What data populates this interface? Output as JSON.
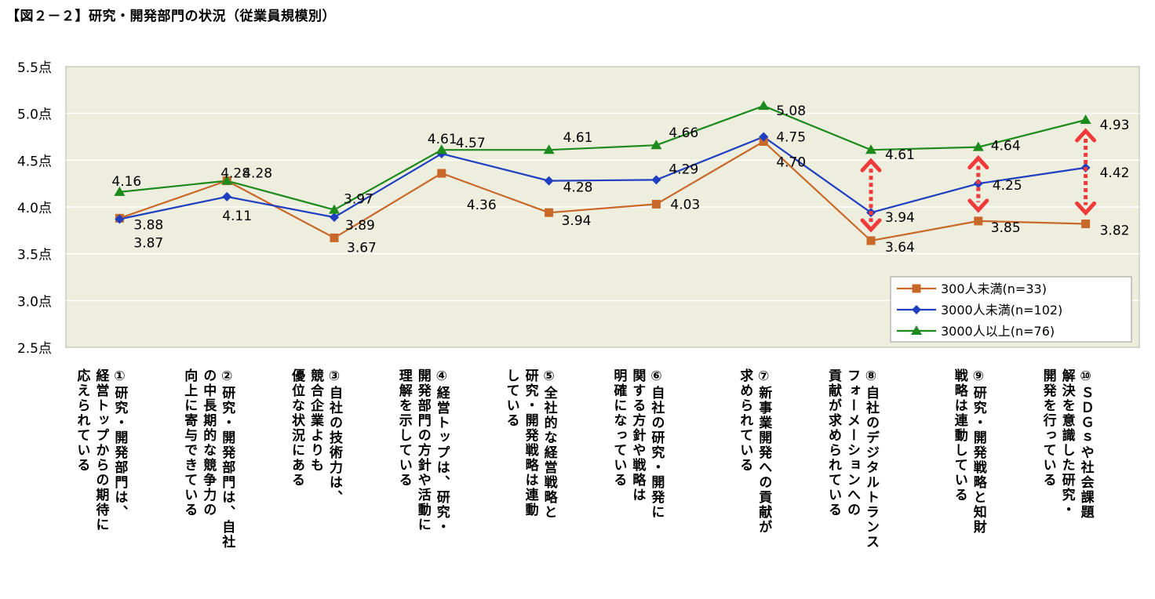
{
  "title": "【図２－２】研究・開発部門の状況（従業員規模別）",
  "chart_data": {
    "type": "line",
    "ylim": [
      2.5,
      5.5
    ],
    "yticks": [
      2.5,
      3.0,
      3.5,
      4.0,
      4.5,
      5.0,
      5.5
    ],
    "ytick_labels": [
      "2.5点",
      "3.0点",
      "3.5点",
      "4.0点",
      "4.5点",
      "5.0点",
      "5.5点"
    ],
    "categories": [
      [
        "①研究・開発部門は、",
        "経営トップからの期待に",
        "応えられている"
      ],
      [
        "②研究・開発部門は、自社",
        "の中長期的な競争力の",
        "向上に寄与できている"
      ],
      [
        "③自社の技術力は、",
        "競合企業よりも",
        "優位な状況にある"
      ],
      [
        "④経営トップは、研究・",
        "開発部門の方針や活動に",
        "理解を示している"
      ],
      [
        "⑤全社的な経営戦略と",
        "研究・開発戦略は連動",
        "している"
      ],
      [
        "⑥自社の研究・開発に",
        "関する方針や戦略は",
        "明確になっている"
      ],
      [
        "⑦新事業開発への貢献が",
        "求められている"
      ],
      [
        "⑧自社のデジタルトランス",
        "フォーメーションへの",
        "貢献が求められている"
      ],
      [
        "⑨研究・開発戦略と知財",
        "戦略は連動している"
      ],
      [
        "⑩ＳＤＧｓや社会課題",
        "解決を意識した研究・",
        "開発を行っている"
      ]
    ],
    "series": [
      {
        "name": "300人未満(n=33)",
        "color": "#c8692a",
        "marker": "square",
        "values": [
          3.88,
          4.28,
          3.67,
          4.36,
          3.94,
          4.03,
          4.7,
          3.64,
          3.85,
          3.82
        ],
        "labels": [
          "3.88",
          "4.28",
          "3.67",
          "4.36",
          "3.94",
          "4.03",
          "4.70",
          "3.64",
          "3.85",
          "3.82"
        ]
      },
      {
        "name": "3000人未満(n=102)",
        "color": "#1f3fc0",
        "marker": "diamond",
        "values": [
          3.87,
          4.11,
          3.89,
          4.57,
          4.28,
          4.29,
          4.75,
          3.94,
          4.25,
          4.42
        ],
        "labels": [
          "3.87",
          "4.11",
          "3.89",
          "4.57",
          "4.28",
          "4.29",
          "4.75",
          "3.94",
          "4.25",
          "4.42"
        ]
      },
      {
        "name": "3000人以上(n=76)",
        "color": "#1c8a1c",
        "marker": "triangle",
        "values": [
          4.16,
          4.28,
          3.97,
          4.61,
          4.61,
          4.66,
          5.08,
          4.61,
          4.64,
          4.93
        ],
        "labels": [
          "4.16",
          "4.28",
          "3.97",
          "4.61",
          "4.61",
          "4.66",
          "5.08",
          "4.61",
          "4.64",
          "4.93"
        ]
      }
    ],
    "arrows_between_categories": [
      7,
      8,
      9
    ],
    "arrow_color": "#f03a3a",
    "plot_background": "#eeeedf",
    "legend_position": "bottom-right inside plot",
    "grid": "horizontal"
  }
}
